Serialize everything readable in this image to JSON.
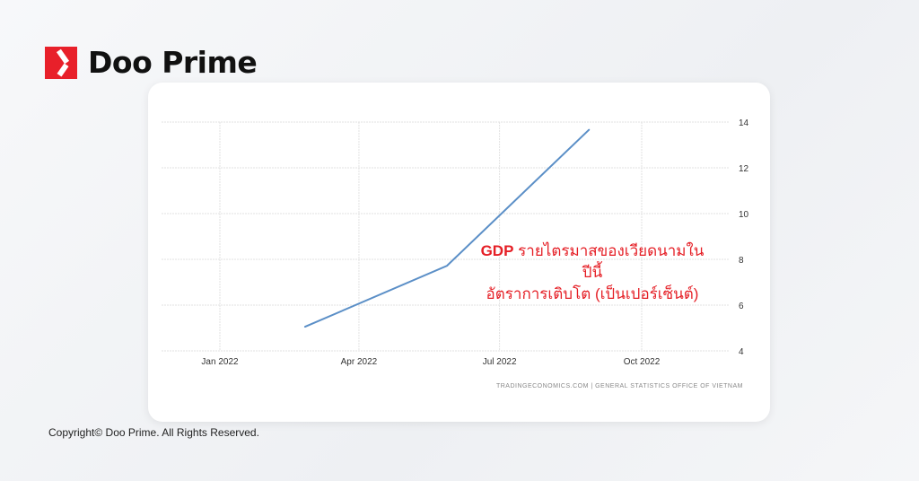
{
  "brand": {
    "name": "Doo Prime",
    "copyright": "Copyright© Doo Prime. All Rights Reserved.",
    "accent": "#e8202a"
  },
  "chart_data": {
    "type": "line",
    "title": "",
    "annotation": {
      "bold": "GDP",
      "line1": " รายไตรมาสของเวียดนามในปีนี้",
      "line2": "อัตราการเติบโต (เป็นเปอร์เซ็นต์)"
    },
    "source": "TRADINGECONOMICS.COM | GENERAL STATISTICS OFFICE OF VIETNAM",
    "x": [
      "2022-02-25",
      "2022-05-28",
      "2022-08-28"
    ],
    "values": [
      5.05,
      7.72,
      13.67
    ],
    "xlim": [
      "2021-11-15",
      "2022-12-31"
    ],
    "ylim": [
      4,
      14
    ],
    "yticks": [
      4,
      6,
      8,
      10,
      12,
      14
    ],
    "xticks": [
      {
        "date": "2022-01-01",
        "label": "Jan 2022"
      },
      {
        "date": "2022-04-01",
        "label": "Apr 2022"
      },
      {
        "date": "2022-07-01",
        "label": "Jul 2022"
      },
      {
        "date": "2022-10-01",
        "label": "Oct 2022"
      }
    ],
    "grid": true,
    "yaxis_side": "right",
    "line_color": "#5b8fc7"
  }
}
